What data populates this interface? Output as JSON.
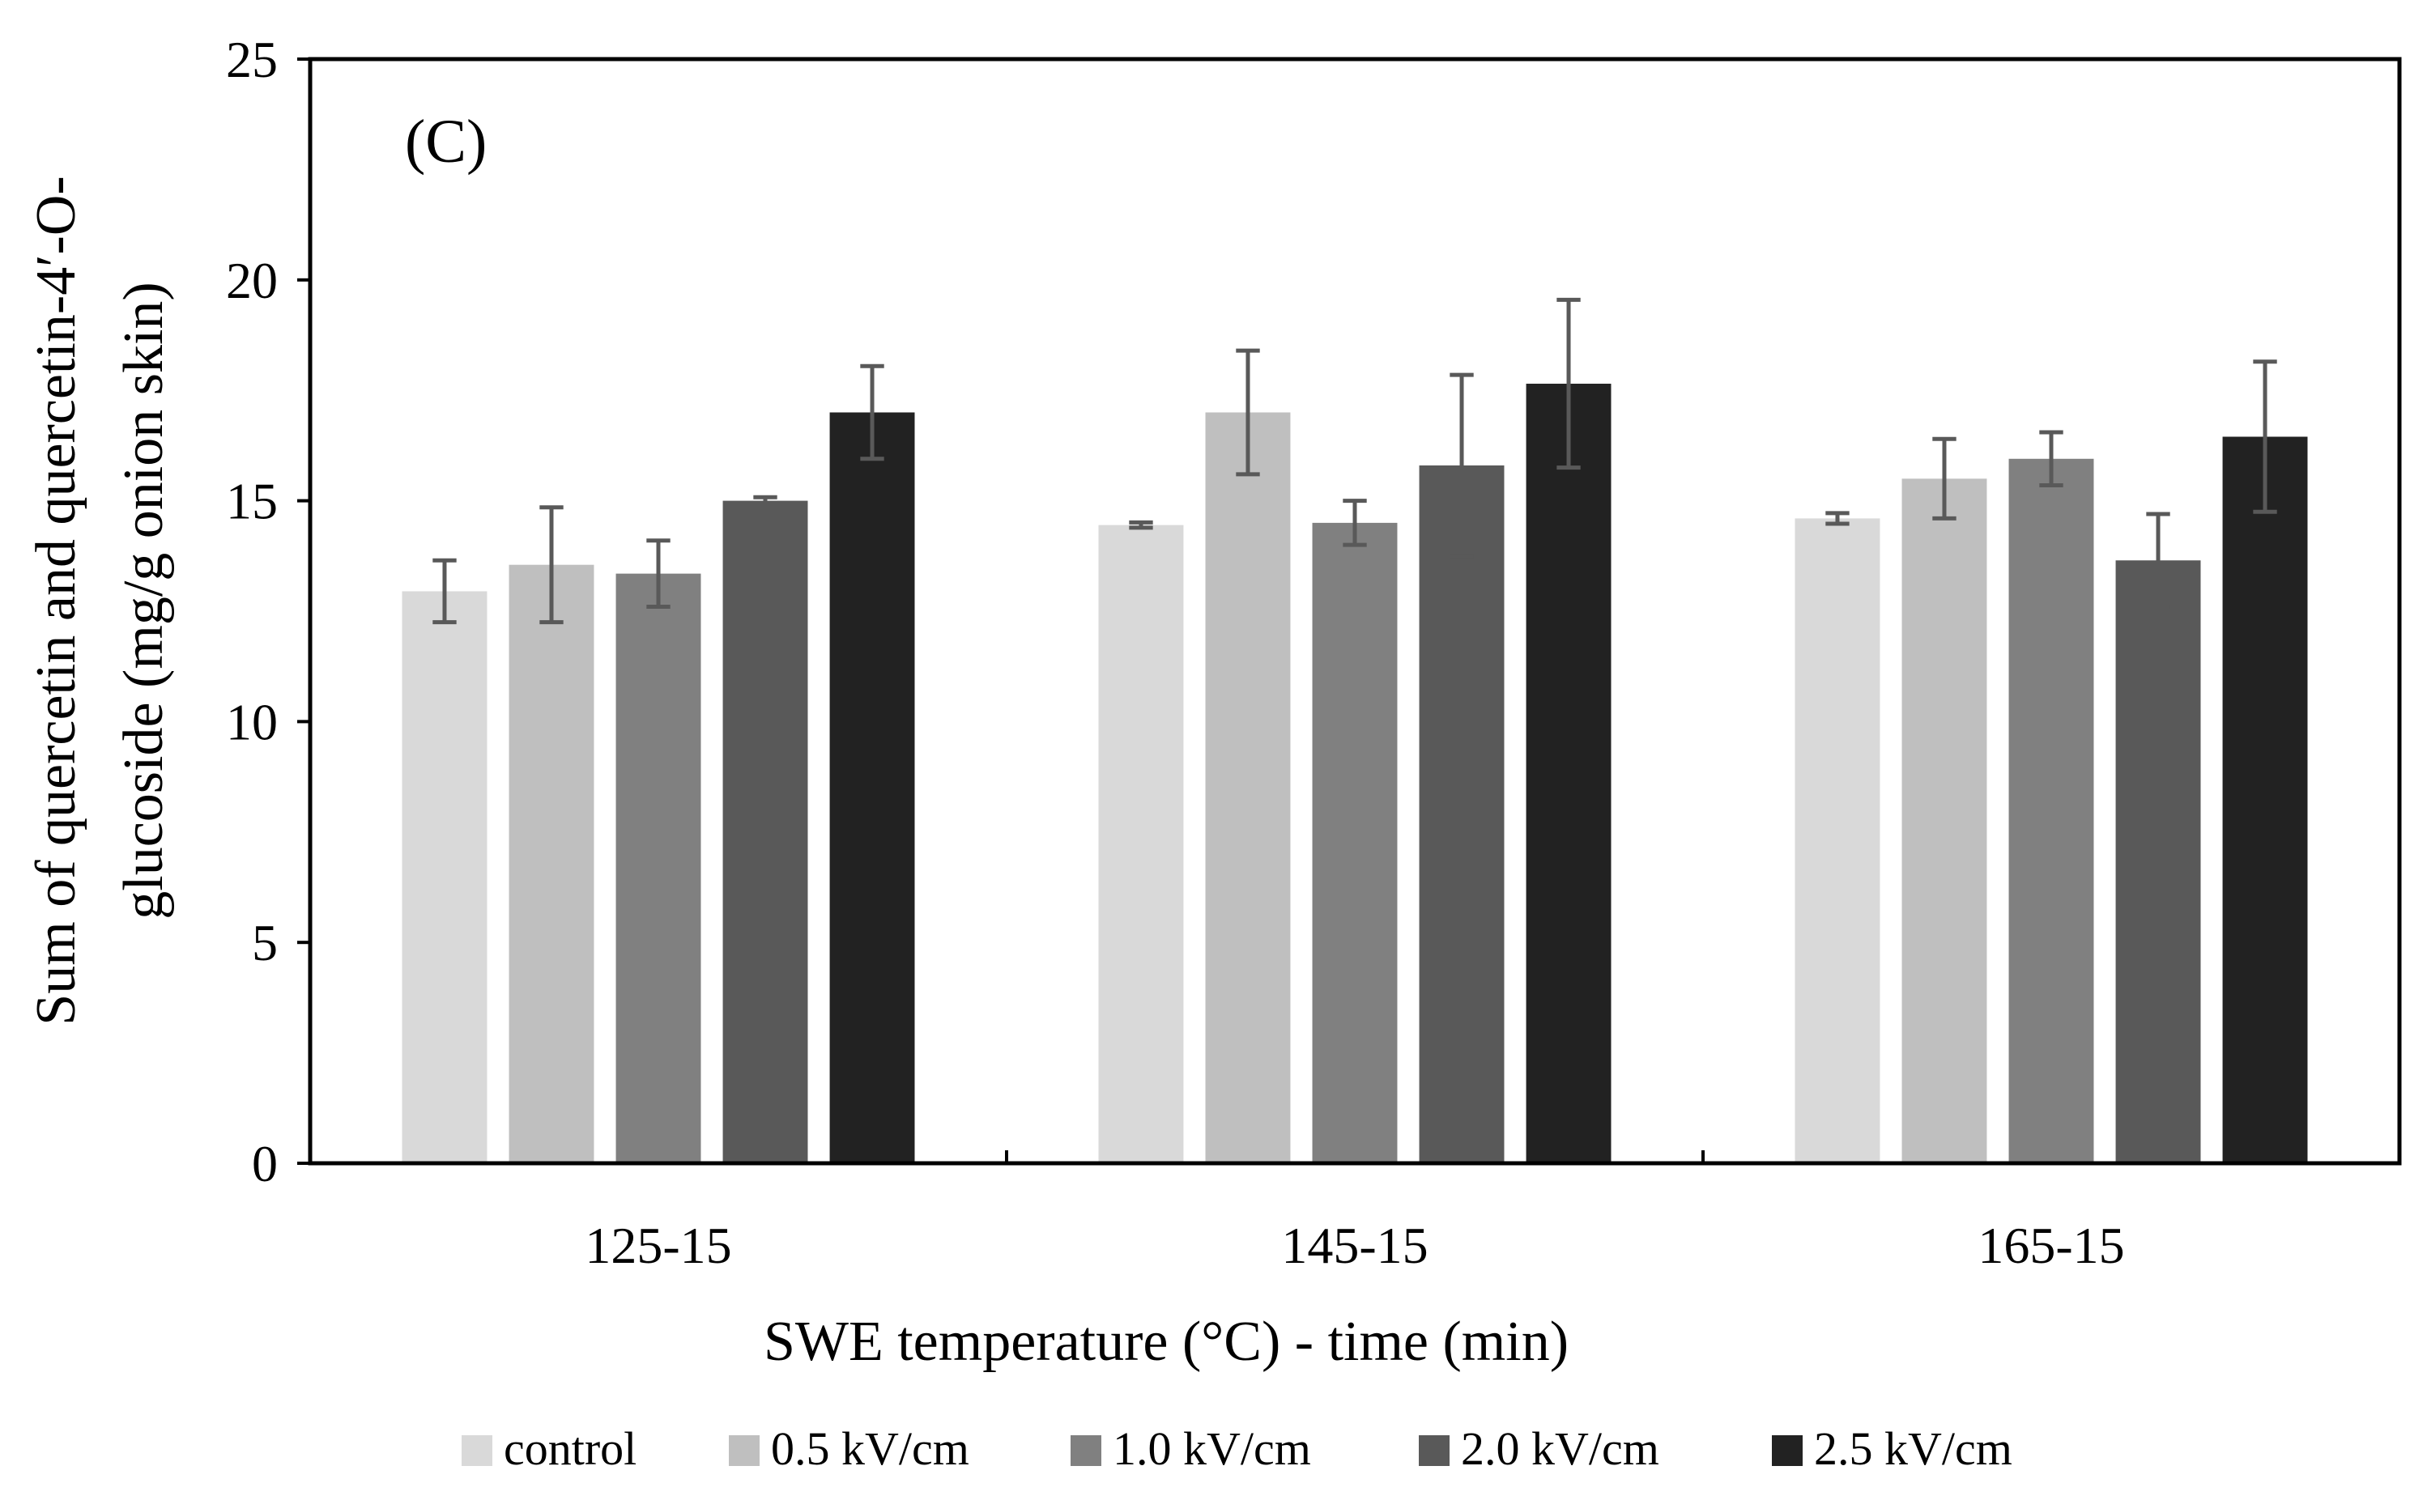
{
  "chart_data": {
    "type": "bar",
    "panel_label": "(C)",
    "categories": [
      "125-15",
      "145-15",
      "165-15"
    ],
    "series": [
      {
        "name": "control",
        "color": "#d9d9d9",
        "values": [
          12.95,
          14.45,
          14.6
        ],
        "errors": [
          0.7,
          0.06,
          0.12
        ]
      },
      {
        "name": "0.5 kV/cm",
        "color": "#bfbfbf",
        "values": [
          13.55,
          17.0,
          15.5
        ],
        "errors": [
          1.3,
          1.4,
          0.9
        ]
      },
      {
        "name": "1.0 kV/cm",
        "color": "#808080",
        "values": [
          13.35,
          14.5,
          15.95
        ],
        "errors": [
          0.75,
          0.5,
          0.6
        ]
      },
      {
        "name": "2.0 kV/cm",
        "color": "#595959",
        "values": [
          15.0,
          15.8,
          13.65
        ],
        "errors": [
          0.08,
          2.05,
          1.05
        ]
      },
      {
        "name": "2.5 kV/cm",
        "color": "#222222",
        "values": [
          17.0,
          17.65,
          16.45
        ],
        "errors": [
          1.05,
          1.9,
          1.7
        ]
      }
    ],
    "error_bar_color": "#595959",
    "xlabel": "SWE temperature (°C) - time (min)",
    "ylabel_line1": "Sum of quercetin and quercetin-4′-O-",
    "ylabel_line2": "glucoside (mg/g  onion skin)",
    "ylim": [
      0,
      25
    ],
    "yticks": [
      0,
      5,
      10,
      15,
      20,
      25
    ],
    "grid": false,
    "legend_position": "bottom"
  }
}
